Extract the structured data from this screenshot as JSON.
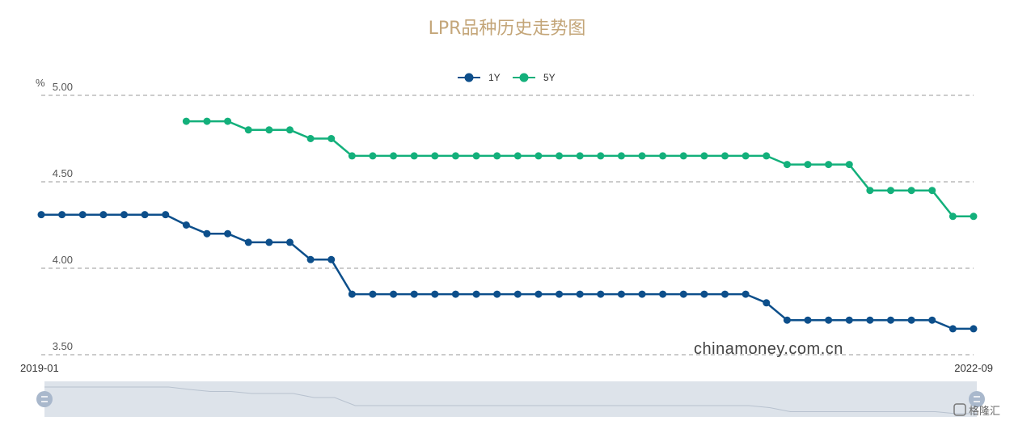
{
  "chart_data": {
    "type": "line",
    "title": "LPR品种历史走势图",
    "ylabel": "%",
    "ylim": [
      3.5,
      5.0
    ],
    "yticks": [
      "5.00",
      "4.50",
      "4.00",
      "3.50"
    ],
    "grid": true,
    "legend_position": "top-center",
    "x_range_labels": [
      "2019-01",
      "2022-09"
    ],
    "series": [
      {
        "name": "1Y",
        "color": "#0d4f8b",
        "values": [
          4.31,
          4.31,
          4.31,
          4.31,
          4.31,
          4.31,
          4.31,
          4.25,
          4.2,
          4.2,
          4.15,
          4.15,
          4.15,
          4.05,
          4.05,
          3.85,
          3.85,
          3.85,
          3.85,
          3.85,
          3.85,
          3.85,
          3.85,
          3.85,
          3.85,
          3.85,
          3.85,
          3.85,
          3.85,
          3.85,
          3.85,
          3.85,
          3.85,
          3.85,
          3.85,
          3.8,
          3.7,
          3.7,
          3.7,
          3.7,
          3.7,
          3.7,
          3.7,
          3.7,
          3.65,
          3.65
        ]
      },
      {
        "name": "5Y",
        "color": "#13b07b",
        "values": [
          null,
          null,
          null,
          null,
          null,
          null,
          null,
          4.85,
          4.85,
          4.85,
          4.8,
          4.8,
          4.8,
          4.75,
          4.75,
          4.65,
          4.65,
          4.65,
          4.65,
          4.65,
          4.65,
          4.65,
          4.65,
          4.65,
          4.65,
          4.65,
          4.65,
          4.65,
          4.65,
          4.65,
          4.65,
          4.65,
          4.65,
          4.65,
          4.65,
          4.65,
          4.6,
          4.6,
          4.6,
          4.6,
          4.45,
          4.45,
          4.45,
          4.45,
          4.3,
          4.3
        ]
      }
    ],
    "watermark": "chinamoney.com.cn"
  },
  "colors": {
    "title": "#c4a679",
    "grid": "#999999",
    "slider_bg": "#dde3ea",
    "slider_handle": "#a9b8cc"
  },
  "badge_text": "格隆汇"
}
